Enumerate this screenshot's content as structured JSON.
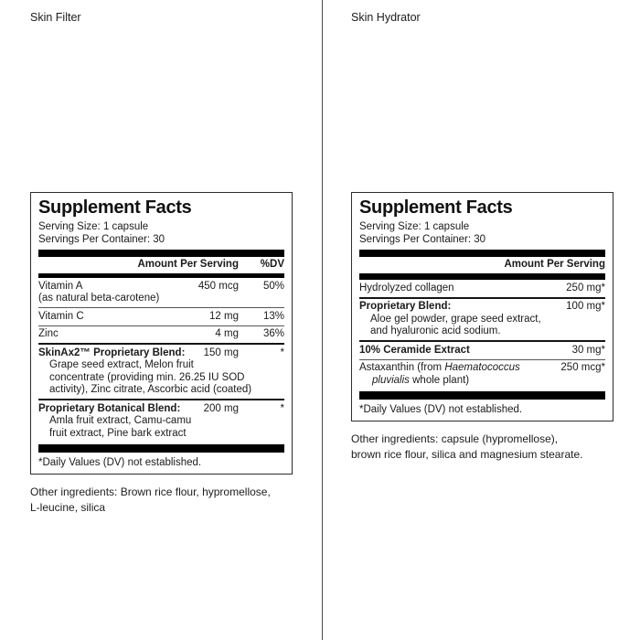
{
  "page": {
    "background": "#ffffff",
    "divider_color": "#4a4a4a",
    "bar_color": "#000000",
    "text_color": "#1a1a1a"
  },
  "panels": [
    {
      "label": "Skin Filter",
      "title": "Supplement Facts",
      "serving_size": "Serving Size: 1 capsule",
      "servings_per_container": "Servings Per Container: 30",
      "columns": {
        "amount": "Amount Per Serving",
        "dv": "%DV"
      },
      "rows": [
        {
          "separator": "none",
          "name_lines": [
            [
              {
                "t": "Vitamin A"
              }
            ],
            [
              {
                "t": "(as natural beta-carotene)"
              }
            ]
          ],
          "amount": "450 mcg",
          "dv": "50%"
        },
        {
          "separator": "thin",
          "name_lines": [
            [
              {
                "t": "Vitamin C"
              }
            ]
          ],
          "amount": "12 mg",
          "dv": "13%"
        },
        {
          "separator": "thin",
          "name_lines": [
            [
              {
                "t": "Zinc"
              }
            ]
          ],
          "amount": "4 mg",
          "dv": "36%"
        },
        {
          "separator": "thick",
          "name_lines": [
            [
              {
                "t": "SkinAx2™ Proprietary Blend:",
                "b": true
              }
            ]
          ],
          "amount": "150 mg",
          "dv": "*",
          "sub_lines": [
            "Grape seed extract, Melon fruit",
            "concentrate (providing min. 26.25 IU SOD",
            "activity), Zinc citrate, Ascorbic acid (coated)"
          ]
        },
        {
          "separator": "thick",
          "name_lines": [
            [
              {
                "t": "Proprietary Botanical Blend:",
                "b": true
              }
            ]
          ],
          "amount": "200 mg",
          "dv": "*",
          "sub_lines": [
            "Amla fruit extract, Camu-camu",
            "fruit extract, Pine bark extract"
          ]
        }
      ],
      "footnote": "*Daily Values (DV) not established.",
      "other_ingredients_lines": [
        "Other ingredients: Brown rice flour, hypromellose,",
        "L-leucine, silica"
      ]
    },
    {
      "label": "Skin Hydrator",
      "title": "Supplement Facts",
      "serving_size": "Serving Size: 1 capsule",
      "servings_per_container": "Servings Per Container: 30",
      "columns": {
        "amount": "Amount Per Serving"
      },
      "rows": [
        {
          "separator": "none",
          "name_lines": [
            [
              {
                "t": "Hydrolyzed collagen"
              }
            ]
          ],
          "amount": "250 mg*"
        },
        {
          "separator": "thick",
          "name_lines": [
            [
              {
                "t": "Proprietary Blend:",
                "b": true
              }
            ]
          ],
          "amount": "100 mg*",
          "sub_lines": [
            "Aloe gel powder, grape seed extract,",
            "and hyaluronic acid sodium."
          ]
        },
        {
          "separator": "thick",
          "name_lines": [
            [
              {
                "t": "10% Ceramide Extract",
                "b": true
              }
            ]
          ],
          "amount": "30 mg*"
        },
        {
          "separator": "thin",
          "name_lines": [
            [
              {
                "t": "Astaxanthin (from "
              },
              {
                "t": "Haematococcus",
                "i": true
              }
            ],
            [
              {
                "t": "pluvialis",
                "i": true
              },
              {
                "t": " whole plant)"
              }
            ]
          ],
          "indent_extra_lines": true,
          "amount": "250 mcg*"
        }
      ],
      "footnote": "*Daily Values (DV) not established.",
      "other_ingredients_lines": [
        "Other ingredients: capsule (hypromellose),",
        "brown rice flour, silica and magnesium stearate."
      ]
    }
  ]
}
